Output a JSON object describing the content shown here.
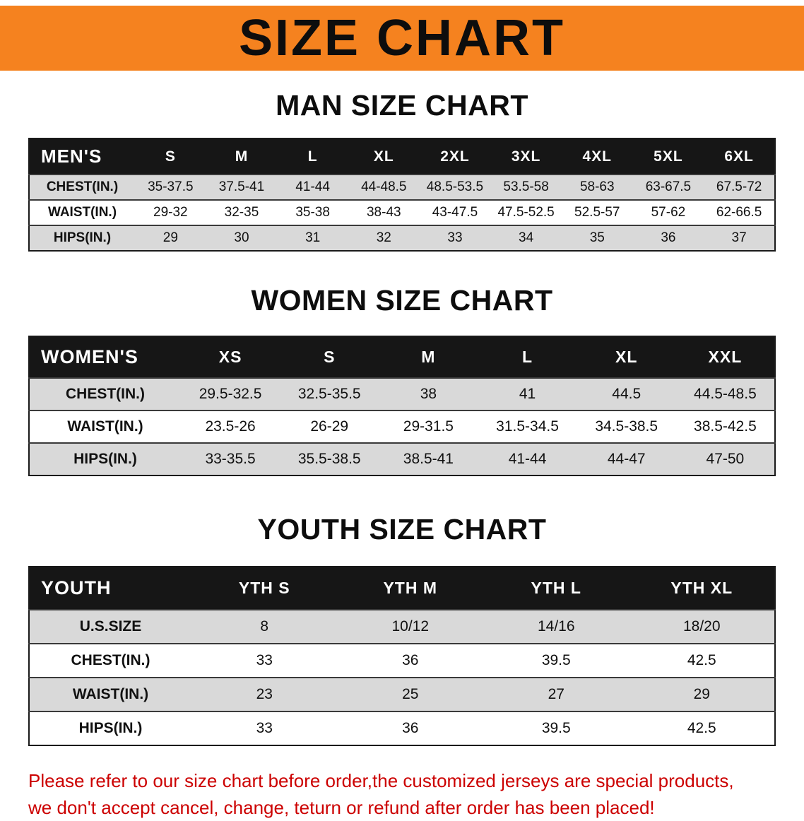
{
  "banner": {
    "title": "SIZE CHART",
    "bg_color": "#F5821F",
    "text_color": "#0d0d0d"
  },
  "charts": {
    "men": {
      "heading": "MAN SIZE CHART",
      "header": [
        "MEN'S",
        "S",
        "M",
        "L",
        "XL",
        "2XL",
        "3XL",
        "4XL",
        "5XL",
        "6XL"
      ],
      "rows": [
        [
          "CHEST(IN.)",
          "35-37.5",
          "37.5-41",
          "41-44",
          "44-48.5",
          "48.5-53.5",
          "53.5-58",
          "58-63",
          "63-67.5",
          "67.5-72"
        ],
        [
          "WAIST(IN.)",
          "29-32",
          "32-35",
          "35-38",
          "38-43",
          "43-47.5",
          "47.5-52.5",
          "52.5-57",
          "57-62",
          "62-66.5"
        ],
        [
          "HIPS(IN.)",
          "29",
          "30",
          "31",
          "32",
          "33",
          "34",
          "35",
          "36",
          "37"
        ]
      ]
    },
    "women": {
      "heading": "WOMEN SIZE CHART",
      "header": [
        "WOMEN'S",
        "XS",
        "S",
        "M",
        "L",
        "XL",
        "XXL"
      ],
      "rows": [
        [
          "CHEST(IN.)",
          "29.5-32.5",
          "32.5-35.5",
          "38",
          "41",
          "44.5",
          "44.5-48.5"
        ],
        [
          "WAIST(IN.)",
          "23.5-26",
          "26-29",
          "29-31.5",
          "31.5-34.5",
          "34.5-38.5",
          "38.5-42.5"
        ],
        [
          "HIPS(IN.)",
          "33-35.5",
          "35.5-38.5",
          "38.5-41",
          "41-44",
          "44-47",
          "47-50"
        ]
      ]
    },
    "youth": {
      "heading": "YOUTH SIZE CHART",
      "header": [
        "YOUTH",
        "YTH S",
        "YTH M",
        "YTH L",
        "YTH XL"
      ],
      "rows": [
        [
          "U.S.SIZE",
          "8",
          "10/12",
          "14/16",
          "18/20"
        ],
        [
          "CHEST(IN.)",
          "33",
          "36",
          "39.5",
          "42.5"
        ],
        [
          "WAIST(IN.)",
          "23",
          "25",
          "27",
          "29"
        ],
        [
          "HIPS(IN.)",
          "33",
          "36",
          "39.5",
          "42.5"
        ]
      ]
    }
  },
  "footer_note": {
    "line1": "Please refer to our size chart before order,the customized jerseys are special products,",
    "line2": "we don't accept cancel, change, teturn or refund after order has been placed!",
    "color": "#cc0000"
  }
}
